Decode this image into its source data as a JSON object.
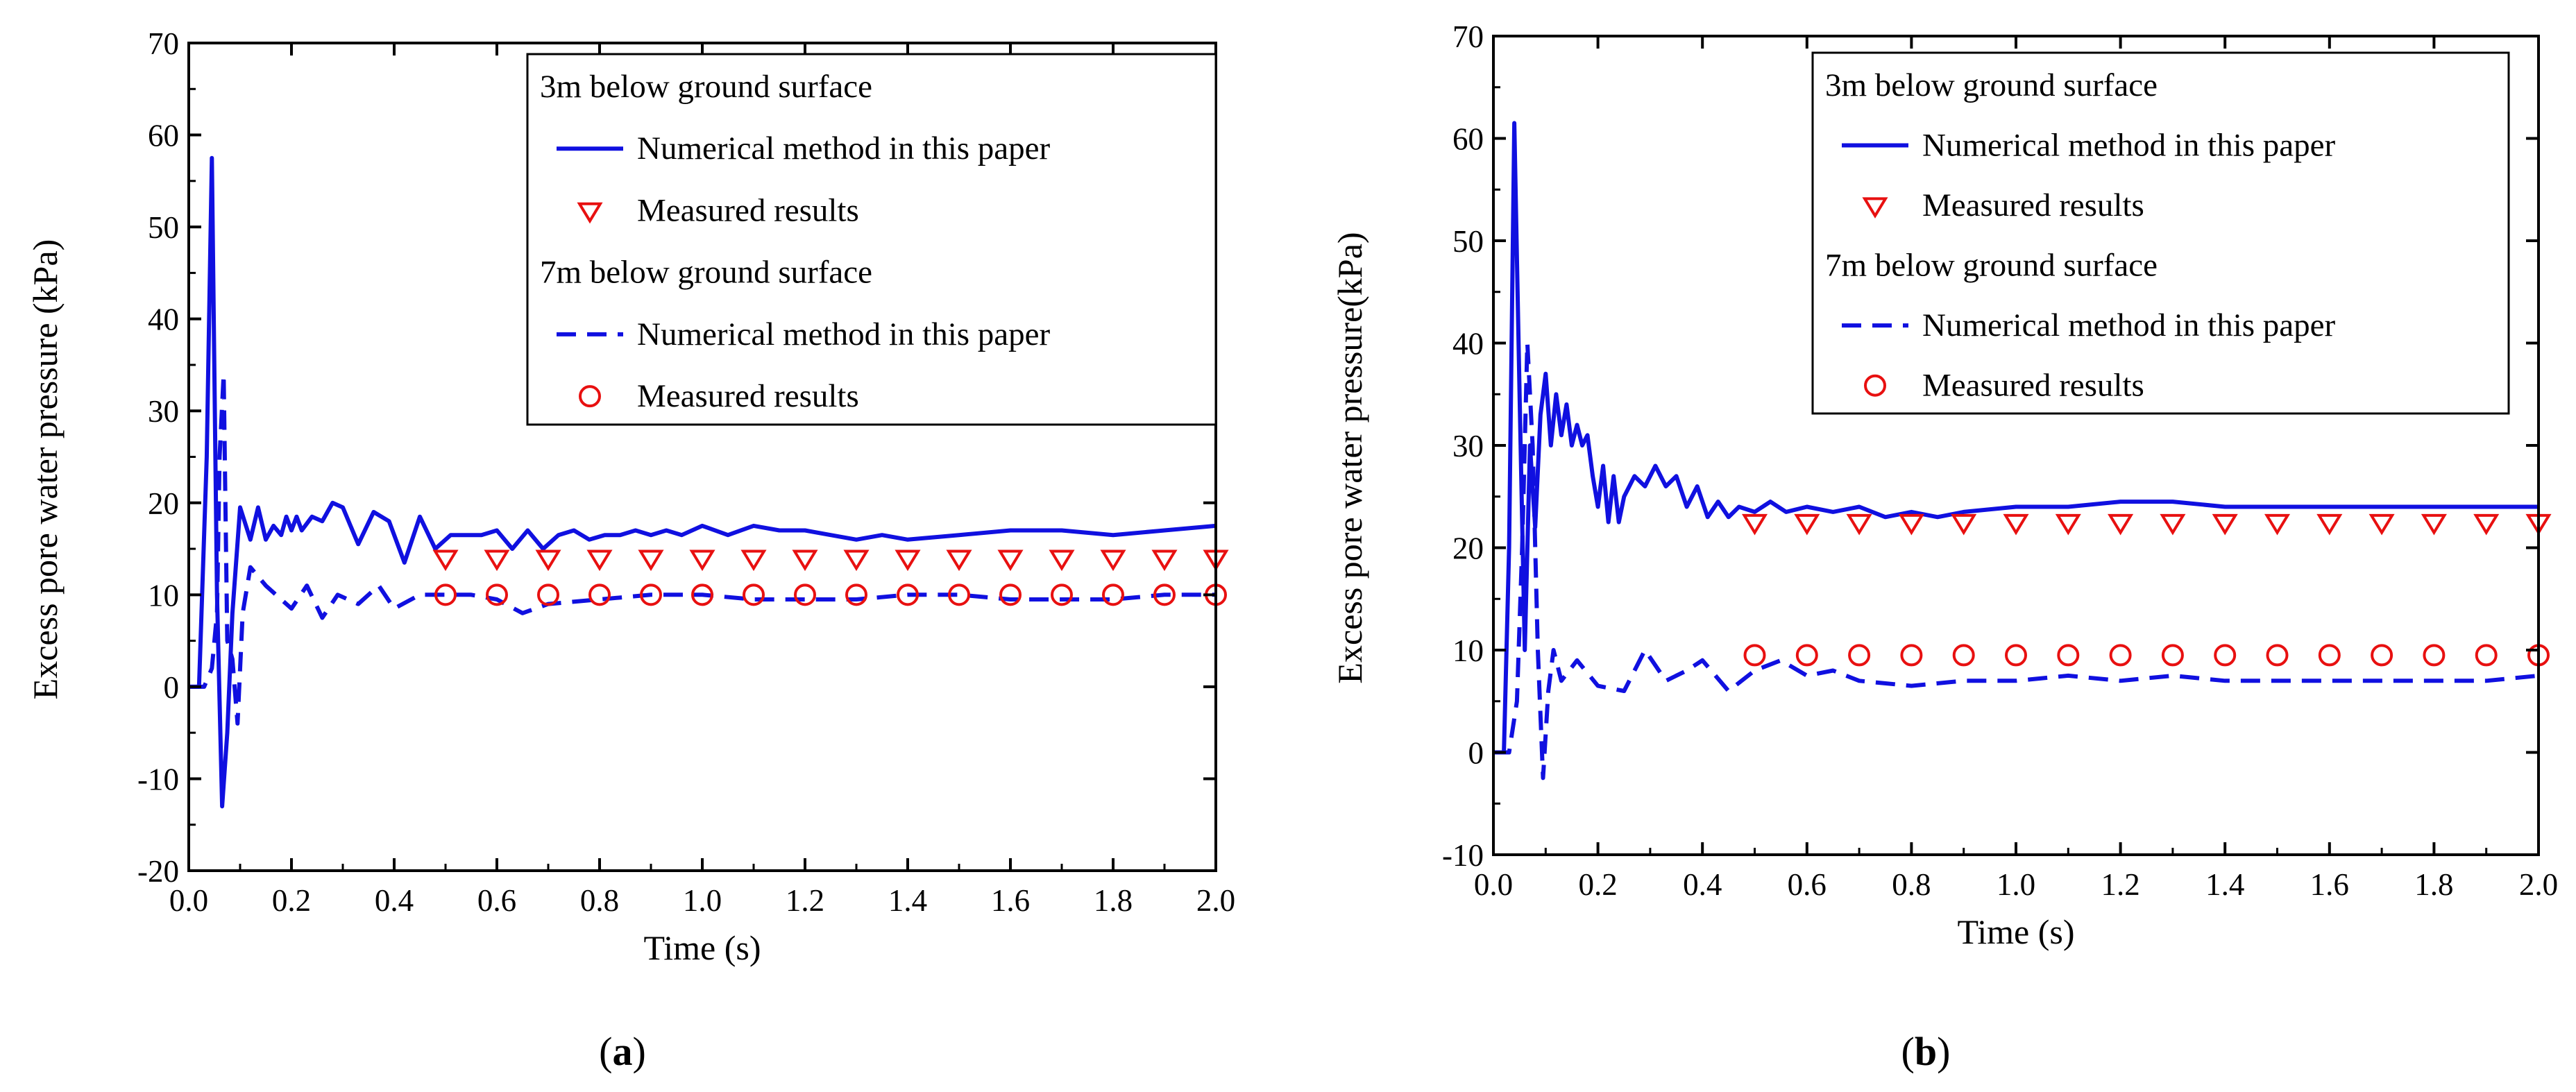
{
  "colors": {
    "line": "#1010e0",
    "marker": "#e81010",
    "axis": "#000000"
  },
  "chart_data": [
    {
      "type": "line",
      "panel_label": "a",
      "xlabel": "Time (s)",
      "ylabel": "Excess pore water pressure (kPa)",
      "xlim": [
        0,
        2.0
      ],
      "ylim": [
        -20,
        70
      ],
      "xticks": [
        0.0,
        0.2,
        0.4,
        0.6,
        0.8,
        1.0,
        1.2,
        1.4,
        1.6,
        1.8,
        2.0
      ],
      "xtick_labels": [
        "0.0",
        "0.2",
        "0.4",
        "0.6",
        "0.8",
        "1.0",
        "1.2",
        "1.4",
        "1.6",
        "1.8",
        "2.0"
      ],
      "yticks": [
        -20,
        -10,
        0,
        10,
        20,
        30,
        40,
        50,
        60,
        70
      ],
      "ytick_labels": [
        "-20",
        "-10",
        "0",
        "10",
        "20",
        "30",
        "40",
        "50",
        "60",
        "70"
      ],
      "legend": {
        "position": "top-right",
        "group1_title": "3m below ground surface",
        "group1_line": "Numerical method in this paper",
        "group1_marker": "Measured results",
        "group2_title": "7m below ground surface",
        "group2_line": "Numerical method in this paper",
        "group2_marker": "Measured results"
      },
      "series": [
        {
          "name": "3m numerical",
          "style": "solid",
          "x": [
            0,
            0.02,
            0.035,
            0.045,
            0.055,
            0.065,
            0.075,
            0.085,
            0.1,
            0.12,
            0.135,
            0.15,
            0.165,
            0.18,
            0.19,
            0.2,
            0.21,
            0.22,
            0.24,
            0.26,
            0.28,
            0.3,
            0.33,
            0.36,
            0.39,
            0.42,
            0.45,
            0.48,
            0.51,
            0.54,
            0.57,
            0.6,
            0.63,
            0.66,
            0.69,
            0.72,
            0.75,
            0.78,
            0.81,
            0.84,
            0.87,
            0.9,
            0.93,
            0.96,
            1.0,
            1.05,
            1.1,
            1.15,
            1.2,
            1.25,
            1.3,
            1.35,
            1.4,
            1.5,
            1.6,
            1.7,
            1.8,
            1.9,
            2.0
          ],
          "y": [
            0,
            0,
            25,
            57.5,
            10,
            -13,
            -5,
            8,
            19.5,
            16,
            19.5,
            16,
            17.5,
            16.5,
            18.5,
            17,
            18.5,
            17,
            18.5,
            18,
            20,
            19.5,
            15.5,
            19,
            18,
            13.5,
            18.5,
            15,
            16.5,
            16.5,
            16.5,
            17,
            15,
            17,
            15,
            16.5,
            17,
            16,
            16.5,
            16.5,
            17,
            16.5,
            17,
            16.5,
            17.5,
            16.5,
            17.5,
            17,
            17,
            16.5,
            16,
            16.5,
            16,
            16.5,
            17,
            17,
            16.5,
            17,
            17.5
          ]
        },
        {
          "name": "7m numerical",
          "style": "dashed",
          "x": [
            0,
            0.03,
            0.045,
            0.055,
            0.06,
            0.068,
            0.075,
            0.085,
            0.095,
            0.105,
            0.12,
            0.15,
            0.2,
            0.23,
            0.26,
            0.29,
            0.33,
            0.37,
            0.4,
            0.45,
            0.5,
            0.55,
            0.6,
            0.65,
            0.7,
            0.8,
            0.9,
            1.0,
            1.1,
            1.2,
            1.3,
            1.4,
            1.5,
            1.6,
            1.7,
            1.8,
            1.9,
            2.0
          ],
          "y": [
            0,
            0,
            2,
            8,
            25,
            34,
            5,
            3,
            -4,
            8,
            13,
            11,
            8.5,
            11,
            7.5,
            10,
            9,
            11,
            8.5,
            10,
            10,
            10,
            9.5,
            8,
            9,
            9.5,
            10,
            10,
            9.5,
            9.5,
            9.5,
            10,
            10,
            9.5,
            9.5,
            9.5,
            10,
            10
          ]
        },
        {
          "name": "3m measured",
          "style": "marker-triangle-down",
          "x": [
            0.5,
            0.6,
            0.7,
            0.8,
            0.9,
            1.0,
            1.1,
            1.2,
            1.3,
            1.4,
            1.5,
            1.6,
            1.7,
            1.8,
            1.9,
            2.0
          ],
          "y": [
            14,
            14,
            14,
            14,
            14,
            14,
            14,
            14,
            14,
            14,
            14,
            14,
            14,
            14,
            14,
            14
          ]
        },
        {
          "name": "7m measured",
          "style": "marker-circle",
          "x": [
            0.5,
            0.6,
            0.7,
            0.8,
            0.9,
            1.0,
            1.1,
            1.2,
            1.3,
            1.4,
            1.5,
            1.6,
            1.7,
            1.8,
            1.9,
            2.0
          ],
          "y": [
            10,
            10,
            10,
            10,
            10,
            10,
            10,
            10,
            10,
            10,
            10,
            10,
            10,
            10,
            10,
            10
          ]
        }
      ]
    },
    {
      "type": "line",
      "panel_label": "b",
      "xlabel": "Time (s)",
      "ylabel": "Excess pore water pressure(kPa)",
      "xlim": [
        0,
        2.0
      ],
      "ylim": [
        -10,
        70
      ],
      "xticks": [
        0.0,
        0.2,
        0.4,
        0.6,
        0.8,
        1.0,
        1.2,
        1.4,
        1.6,
        1.8,
        2.0
      ],
      "xtick_labels": [
        "0.0",
        "0.2",
        "0.4",
        "0.6",
        "0.8",
        "1.0",
        "1.2",
        "1.4",
        "1.6",
        "1.8",
        "2.0"
      ],
      "yticks": [
        -10,
        0,
        10,
        20,
        30,
        40,
        50,
        60,
        70
      ],
      "ytick_labels": [
        "-10",
        "0",
        "10",
        "20",
        "30",
        "40",
        "50",
        "60",
        "70"
      ],
      "legend": {
        "position": "top-right",
        "group1_title": "3m below ground surface",
        "group1_line": "Numerical method in this paper",
        "group1_marker": "Measured results",
        "group2_title": "7m below ground surface",
        "group2_line": "Numerical method in this paper",
        "group2_marker": "Measured results"
      },
      "series": [
        {
          "name": "3m numerical",
          "style": "solid",
          "x": [
            0,
            0.02,
            0.03,
            0.04,
            0.05,
            0.06,
            0.07,
            0.08,
            0.09,
            0.1,
            0.11,
            0.12,
            0.13,
            0.14,
            0.15,
            0.16,
            0.17,
            0.18,
            0.19,
            0.2,
            0.21,
            0.22,
            0.23,
            0.24,
            0.25,
            0.27,
            0.29,
            0.31,
            0.33,
            0.35,
            0.37,
            0.39,
            0.41,
            0.43,
            0.45,
            0.47,
            0.5,
            0.53,
            0.56,
            0.6,
            0.65,
            0.7,
            0.75,
            0.8,
            0.85,
            0.9,
            1.0,
            1.1,
            1.2,
            1.3,
            1.4,
            1.5,
            1.6,
            1.7,
            1.8,
            1.9,
            2.0
          ],
          "y": [
            0,
            0,
            20,
            61.5,
            35,
            10,
            30,
            22,
            33,
            37,
            30,
            35,
            31,
            34,
            30,
            32,
            30,
            31,
            27,
            24,
            28,
            22.5,
            27,
            22.5,
            25,
            27,
            26,
            28,
            26,
            27,
            24,
            26,
            23,
            24.5,
            23,
            24,
            23.5,
            24.5,
            23.5,
            24,
            23.5,
            24,
            23,
            23.5,
            23,
            23.5,
            24,
            24,
            24.5,
            24.5,
            24,
            24,
            24,
            24,
            24,
            24,
            24
          ]
        },
        {
          "name": "7m numerical",
          "style": "dashed",
          "x": [
            0,
            0.03,
            0.045,
            0.055,
            0.065,
            0.075,
            0.085,
            0.095,
            0.105,
            0.115,
            0.13,
            0.16,
            0.2,
            0.25,
            0.29,
            0.33,
            0.37,
            0.4,
            0.45,
            0.5,
            0.55,
            0.6,
            0.65,
            0.7,
            0.8,
            0.9,
            1.0,
            1.1,
            1.2,
            1.3,
            1.4,
            1.5,
            1.6,
            1.7,
            1.8,
            1.9,
            2.0
          ],
          "y": [
            0,
            0,
            5,
            20,
            40,
            30,
            10,
            -2.5,
            6,
            10,
            7,
            9,
            6.5,
            6,
            10,
            7,
            8,
            9,
            6,
            8,
            9,
            7.5,
            8,
            7,
            6.5,
            7,
            7,
            7.5,
            7,
            7.5,
            7,
            7,
            7,
            7,
            7,
            7,
            7.5
          ]
        },
        {
          "name": "3m measured",
          "style": "marker-triangle-down",
          "x": [
            0.5,
            0.6,
            0.7,
            0.8,
            0.9,
            1.0,
            1.1,
            1.2,
            1.3,
            1.4,
            1.5,
            1.6,
            1.7,
            1.8,
            1.9,
            2.0
          ],
          "y": [
            22.5,
            22.5,
            22.5,
            22.5,
            22.5,
            22.5,
            22.5,
            22.5,
            22.5,
            22.5,
            22.5,
            22.5,
            22.5,
            22.5,
            22.5,
            22.5
          ]
        },
        {
          "name": "7m measured",
          "style": "marker-circle",
          "x": [
            0.5,
            0.6,
            0.7,
            0.8,
            0.9,
            1.0,
            1.1,
            1.2,
            1.3,
            1.4,
            1.5,
            1.6,
            1.7,
            1.8,
            1.9,
            2.0
          ],
          "y": [
            9.5,
            9.5,
            9.5,
            9.5,
            9.5,
            9.5,
            9.5,
            9.5,
            9.5,
            9.5,
            9.5,
            9.5,
            9.5,
            9.5,
            9.5,
            9.5
          ]
        }
      ]
    }
  ]
}
